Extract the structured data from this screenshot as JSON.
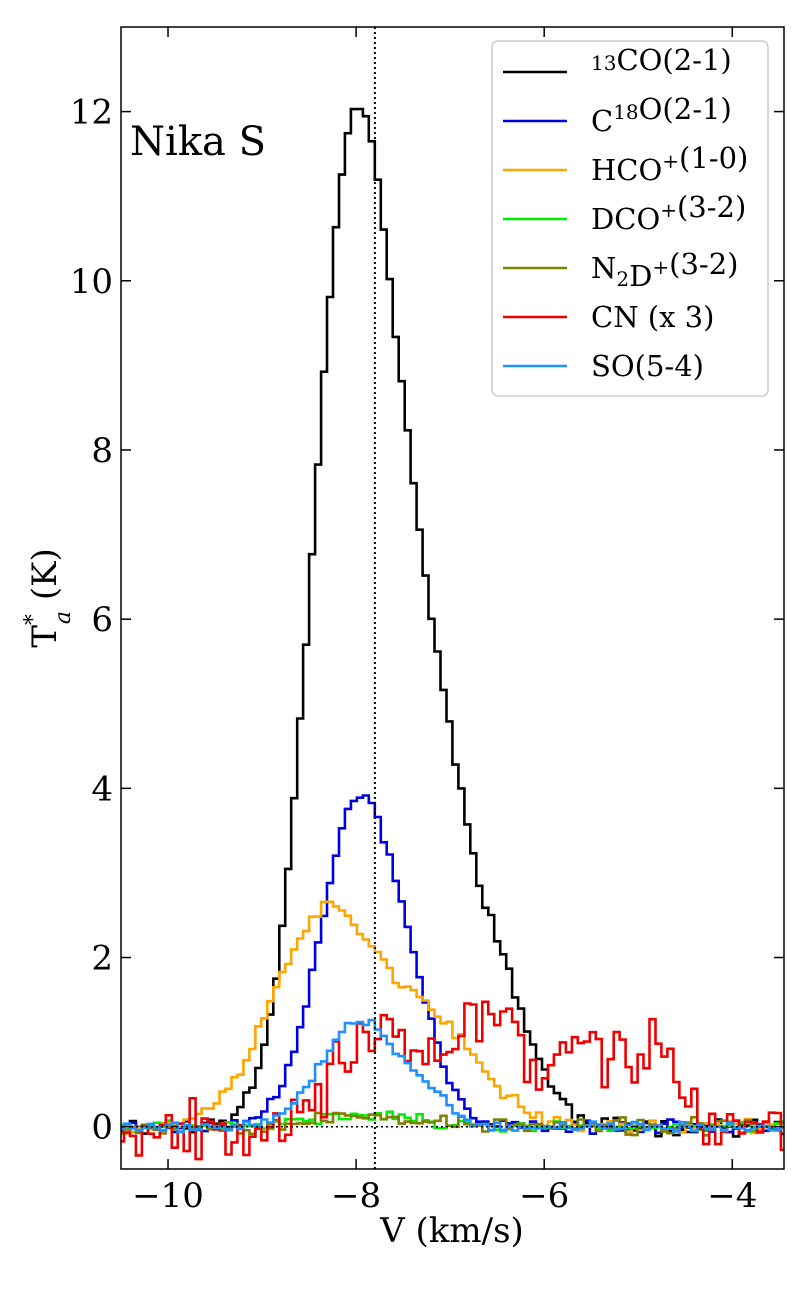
{
  "chart_data": {
    "type": "line",
    "step": true,
    "xlabel": "V (km/s)",
    "ylabel": "T*a (K)",
    "xlim": [
      -10.5,
      -3.45
    ],
    "ylim": [
      -0.5,
      13.0
    ],
    "xticks": [
      -10,
      -8,
      -6,
      -4
    ],
    "yticks": [
      0,
      2,
      4,
      6,
      8,
      10,
      12
    ],
    "xtick_labels": [
      "−10",
      "−8",
      "−6",
      "−4"
    ],
    "ytick_labels": [
      "0",
      "2",
      "4",
      "6",
      "8",
      "10",
      "12"
    ],
    "grid": false,
    "legend_position": "top-right",
    "annotation": "Nika S",
    "vline": {
      "x": -7.8,
      "style": "dotted"
    },
    "hline": {
      "y": 0,
      "style": "dotted"
    },
    "x_start": -10.5,
    "x_step": 0.0635,
    "series": [
      {
        "name": "13CO(2-1)",
        "label_parts": [
          [
            "",
            "normal"
          ],
          [
            "13",
            "sup"
          ],
          [
            "CO(2-1)",
            "normal"
          ]
        ],
        "color": "#000000",
        "gauss": [
          [
            11.0,
            -8.05,
            0.42
          ],
          [
            4.6,
            -7.25,
            0.45
          ],
          [
            1.1,
            -6.4,
            0.35
          ]
        ],
        "noise": 0.12,
        "seed": 11
      },
      {
        "name": "C18O(2-1)",
        "label_parts": [
          [
            "C",
            "normal"
          ],
          [
            "18",
            "sup"
          ],
          [
            "O(2-1)",
            "normal"
          ]
        ],
        "color": "#0000dd",
        "gauss": [
          [
            3.9,
            -7.95,
            0.42
          ],
          [
            0.5,
            -7.3,
            0.25
          ]
        ],
        "noise": 0.09,
        "seed": 23
      },
      {
        "name": "HCO+(1-0)",
        "label_parts": [
          [
            "HCO",
            "normal"
          ],
          [
            "+",
            "sup"
          ],
          [
            "(1-0)",
            "normal"
          ]
        ],
        "color": "#ffa500",
        "gauss": [
          [
            2.45,
            -8.35,
            0.55
          ],
          [
            1.1,
            -7.2,
            0.55
          ]
        ],
        "noise": 0.1,
        "seed": 37
      },
      {
        "name": "DCO+(3-2)",
        "label_parts": [
          [
            "DCO",
            "normal"
          ],
          [
            "+",
            "sup"
          ],
          [
            "(3-2)",
            "normal"
          ]
        ],
        "color": "#00ee00",
        "gauss": [
          [
            0.15,
            -7.9,
            0.5
          ]
        ],
        "noise": 0.08,
        "seed": 41
      },
      {
        "name": "N2D+(3-2)",
        "label_parts": [
          [
            "N",
            "normal"
          ],
          [
            "2",
            "sub"
          ],
          [
            "D",
            "normal"
          ],
          [
            "+",
            "sup"
          ],
          [
            "(3-2)",
            "normal"
          ]
        ],
        "color": "#808000",
        "gauss": [
          [
            0.12,
            -7.8,
            0.6
          ]
        ],
        "noise": 0.12,
        "seed": 53
      },
      {
        "name": "CN (x 3)",
        "label_parts": [
          [
            "CN (x 3)",
            "normal"
          ]
        ],
        "color": "#ee0000",
        "gauss": [
          [
            1.0,
            -7.7,
            0.55
          ],
          [
            1.3,
            -6.55,
            0.3
          ],
          [
            0.9,
            -5.6,
            0.35
          ],
          [
            0.9,
            -4.8,
            0.25
          ]
        ],
        "noise": 0.45,
        "seed": 67
      },
      {
        "name": "SO(5-4)",
        "label_parts": [
          [
            "SO(5-4)",
            "normal"
          ]
        ],
        "color": "#1e90ff",
        "gauss": [
          [
            1.25,
            -7.95,
            0.42
          ],
          [
            0.25,
            -7.2,
            0.2
          ]
        ],
        "noise": 0.07,
        "seed": 79
      }
    ]
  }
}
